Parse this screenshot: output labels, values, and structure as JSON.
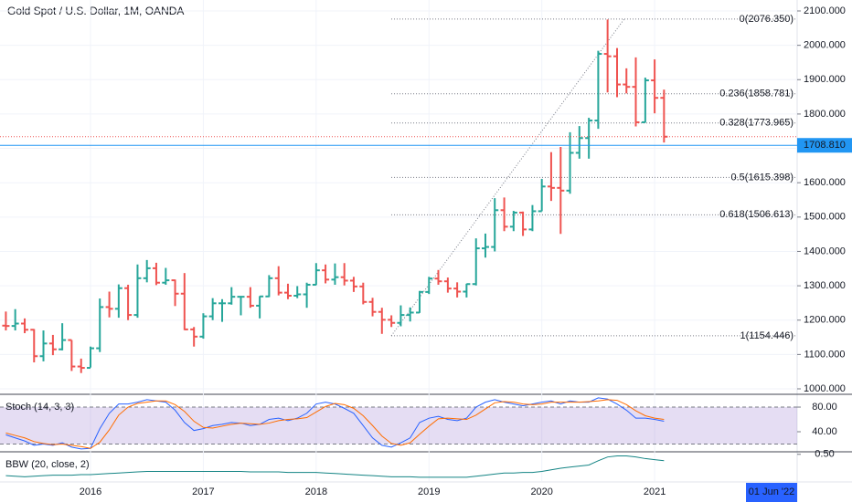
{
  "chart_data": [
    {
      "type": "ohlc",
      "title": "Gold Spot / U.S. Dollar, 1M, OANDA",
      "up_color": "#26a69a",
      "down_color": "#ef5350",
      "x": [
        2015.25,
        2015.333,
        2015.417,
        2015.5,
        2015.583,
        2015.667,
        2015.75,
        2015.833,
        2015.917,
        2016,
        2016.083,
        2016.167,
        2016.25,
        2016.333,
        2016.417,
        2016.5,
        2016.583,
        2016.667,
        2016.75,
        2016.833,
        2016.917,
        2017,
        2017.083,
        2017.167,
        2017.25,
        2017.333,
        2017.417,
        2017.5,
        2017.583,
        2017.667,
        2017.75,
        2017.833,
        2017.917,
        2018,
        2018.083,
        2018.167,
        2018.25,
        2018.333,
        2018.417,
        2018.5,
        2018.583,
        2018.667,
        2018.75,
        2018.833,
        2018.917,
        2019,
        2019.083,
        2019.167,
        2019.25,
        2019.333,
        2019.417,
        2019.5,
        2019.583,
        2019.667,
        2019.75,
        2019.833,
        2019.917,
        2020,
        2020.083,
        2020.167,
        2020.25,
        2020.333,
        2020.417,
        2020.5,
        2020.583,
        2020.667,
        2020.75,
        2020.833,
        2020.917,
        2021,
        2021.083
      ],
      "open": [
        1184,
        1183,
        1190,
        1172,
        1095,
        1132,
        1115,
        1142,
        1065,
        1061,
        1118,
        1238,
        1233,
        1293,
        1215,
        1322,
        1351,
        1309,
        1316,
        1277,
        1173,
        1152,
        1211,
        1249,
        1249,
        1268,
        1268,
        1242,
        1269,
        1322,
        1280,
        1271,
        1275,
        1303,
        1345,
        1318,
        1325,
        1315,
        1298,
        1253,
        1224,
        1201,
        1192,
        1215,
        1222,
        1282,
        1321,
        1313,
        1292,
        1283,
        1305,
        1409,
        1413,
        1520,
        1472,
        1513,
        1464,
        1517,
        1589,
        1585,
        1577,
        1687,
        1730,
        1781,
        1975,
        1968,
        1886,
        1879,
        1776,
        1898,
        1847
      ],
      "high": [
        1225,
        1232,
        1205,
        1174,
        1170,
        1157,
        1191,
        1142,
        1088,
        1123,
        1263,
        1283,
        1304,
        1303,
        1362,
        1375,
        1367,
        1352,
        1318,
        1337,
        1180,
        1220,
        1264,
        1261,
        1296,
        1270,
        1296,
        1270,
        1331,
        1357,
        1306,
        1299,
        1309,
        1366,
        1362,
        1365,
        1366,
        1326,
        1309,
        1265,
        1236,
        1214,
        1243,
        1237,
        1285,
        1326,
        1346,
        1324,
        1310,
        1306,
        1438,
        1452,
        1555,
        1557,
        1518,
        1516,
        1535,
        1611,
        1689,
        1704,
        1747,
        1765,
        1789,
        1984,
        2075,
        1992,
        1933,
        1965,
        1906,
        1959,
        1871
      ],
      "low": [
        1170,
        1170,
        1162,
        1077,
        1080,
        1098,
        1112,
        1052,
        1046,
        1062,
        1107,
        1208,
        1207,
        1200,
        1207,
        1310,
        1302,
        1303,
        1241,
        1171,
        1123,
        1146,
        1200,
        1195,
        1245,
        1214,
        1236,
        1205,
        1267,
        1272,
        1261,
        1264,
        1236,
        1302,
        1307,
        1303,
        1301,
        1282,
        1246,
        1211,
        1160,
        1180,
        1182,
        1196,
        1221,
        1276,
        1303,
        1280,
        1266,
        1266,
        1301,
        1382,
        1400,
        1459,
        1459,
        1445,
        1459,
        1517,
        1547,
        1451,
        1568,
        1670,
        1670,
        1757,
        1863,
        1849,
        1860,
        1764,
        1775,
        1802,
        1717
      ],
      "close": [
        1183,
        1190,
        1172,
        1095,
        1132,
        1115,
        1142,
        1065,
        1061,
        1118,
        1238,
        1233,
        1293,
        1215,
        1322,
        1351,
        1309,
        1316,
        1277,
        1173,
        1152,
        1211,
        1249,
        1249,
        1268,
        1268,
        1242,
        1269,
        1322,
        1280,
        1271,
        1275,
        1303,
        1345,
        1318,
        1325,
        1315,
        1298,
        1253,
        1224,
        1201,
        1192,
        1215,
        1222,
        1282,
        1321,
        1313,
        1292,
        1283,
        1305,
        1409,
        1413,
        1520,
        1472,
        1513,
        1464,
        1517,
        1589,
        1585,
        1577,
        1687,
        1730,
        1781,
        1975,
        1968,
        1886,
        1879,
        1776,
        1898,
        1847,
        1734
      ],
      "xlim": [
        2015.198,
        2022.263
      ],
      "xticks": [
        2016,
        2017,
        2018,
        2019,
        2020,
        2021
      ],
      "ylim": [
        989.4,
        2131.9
      ],
      "yticks": [
        {
          "value": 1000,
          "label": "1000.000"
        },
        {
          "value": 1100,
          "label": "1100.000"
        },
        {
          "value": 1200,
          "label": "1200.000"
        },
        {
          "value": 1300,
          "label": "1300.000"
        },
        {
          "value": 1400,
          "label": "1400.000"
        },
        {
          "value": 1500,
          "label": "1500.000"
        },
        {
          "value": 1600,
          "label": "1600.000"
        },
        {
          "value": 1700,
          "label": "1700.000"
        },
        {
          "value": 1800,
          "label": "1800.000"
        },
        {
          "value": 1900,
          "label": "1900.000"
        },
        {
          "value": 2000,
          "label": "2000.000"
        },
        {
          "value": 2100,
          "label": "2100.000"
        }
      ],
      "current_price": {
        "value": 1708.81,
        "label": "1708.810"
      },
      "fib_levels": [
        {
          "value": 2076.35,
          "label": "0(2076.350)"
        },
        {
          "value": 1858.781,
          "label": "0.236(1858.781)"
        },
        {
          "value": 1773.965,
          "label": "0.328(1773.965)"
        },
        {
          "value": 1615.398,
          "label": "0.5(1615.398)"
        },
        {
          "value": 1506.613,
          "label": "0.618(1506.613)"
        },
        {
          "value": 1154.446,
          "label": "1(1154.446)"
        }
      ],
      "trendline": {
        "x": [
          2018.666,
          2020.73
        ],
        "values": [
          1154.446,
          2076.35
        ]
      },
      "crosshair_date": "01 Jun '22"
    },
    {
      "type": "line",
      "title": "Stoch (14, 3, 3)",
      "x": [
        2015.25,
        2015.333,
        2015.417,
        2015.5,
        2015.583,
        2015.667,
        2015.75,
        2015.833,
        2015.917,
        2016,
        2016.083,
        2016.167,
        2016.25,
        2016.333,
        2016.417,
        2016.5,
        2016.583,
        2016.667,
        2016.75,
        2016.833,
        2016.917,
        2017,
        2017.083,
        2017.167,
        2017.25,
        2017.333,
        2017.417,
        2017.5,
        2017.583,
        2017.667,
        2017.75,
        2017.833,
        2017.917,
        2018,
        2018.083,
        2018.167,
        2018.25,
        2018.333,
        2018.417,
        2018.5,
        2018.583,
        2018.667,
        2018.75,
        2018.833,
        2018.917,
        2019,
        2019.083,
        2019.167,
        2019.25,
        2019.333,
        2019.417,
        2019.5,
        2019.583,
        2019.667,
        2019.75,
        2019.833,
        2019.917,
        2020,
        2020.083,
        2020.167,
        2020.25,
        2020.333,
        2020.417,
        2020.5,
        2020.583,
        2020.667,
        2020.75,
        2020.833,
        2020.917,
        2021,
        2021.083
      ],
      "series": [
        {
          "color": "#2962ff",
          "values": [
            35,
            30,
            25,
            18,
            20,
            18,
            22,
            15,
            12,
            13,
            45,
            70,
            85,
            85,
            88,
            92,
            90,
            88,
            75,
            55,
            42,
            45,
            50,
            52,
            55,
            54,
            50,
            52,
            60,
            62,
            58,
            62,
            70,
            85,
            88,
            85,
            78,
            70,
            50,
            30,
            18,
            15,
            22,
            30,
            55,
            62,
            65,
            60,
            58,
            62,
            80,
            88,
            92,
            88,
            85,
            82,
            85,
            88,
            90,
            85,
            90,
            88,
            88,
            95,
            93,
            85,
            75,
            62,
            62,
            60,
            57
          ]
        },
        {
          "color": "#ff6d00",
          "values": [
            38,
            34,
            30,
            24,
            21,
            19,
            20,
            18,
            16,
            13,
            23,
            43,
            67,
            80,
            86,
            88,
            90,
            90,
            84,
            73,
            57,
            47,
            46,
            49,
            52,
            54,
            53,
            52,
            54,
            58,
            60,
            61,
            63,
            72,
            81,
            86,
            84,
            78,
            66,
            50,
            33,
            21,
            18,
            22,
            36,
            49,
            61,
            62,
            61,
            60,
            67,
            77,
            87,
            89,
            88,
            85,
            84,
            85,
            88,
            88,
            88,
            88,
            89,
            90,
            92,
            91,
            84,
            74,
            66,
            62,
            60
          ]
        }
      ],
      "band": [
        20,
        80
      ],
      "band_color": "#7e57c2",
      "xlim": [
        2015.198,
        2022.263
      ],
      "ylim": [
        8.9,
        99.3
      ],
      "yticks": [
        {
          "value": 80,
          "label": "80.00"
        },
        {
          "value": 40,
          "label": "40.00"
        }
      ]
    },
    {
      "type": "line",
      "title": "BBW (20, close, 2)",
      "x": [
        2015.25,
        2015.333,
        2015.417,
        2015.5,
        2015.583,
        2015.667,
        2015.75,
        2015.833,
        2015.917,
        2016,
        2016.083,
        2016.167,
        2016.25,
        2016.333,
        2016.417,
        2016.5,
        2016.583,
        2016.667,
        2016.75,
        2016.833,
        2016.917,
        2017,
        2017.083,
        2017.167,
        2017.25,
        2017.333,
        2017.417,
        2017.5,
        2017.583,
        2017.667,
        2017.75,
        2017.833,
        2017.917,
        2018,
        2018.083,
        2018.167,
        2018.25,
        2018.333,
        2018.417,
        2018.5,
        2018.583,
        2018.667,
        2018.75,
        2018.833,
        2018.917,
        2019,
        2019.083,
        2019.167,
        2019.25,
        2019.333,
        2019.417,
        2019.5,
        2019.583,
        2019.667,
        2019.75,
        2019.833,
        2019.917,
        2020,
        2020.083,
        2020.167,
        2020.25,
        2020.333,
        2020.417,
        2020.5,
        2020.583,
        2020.667,
        2020.75,
        2020.833,
        2020.917,
        2021,
        2021.083
      ],
      "series": [
        {
          "color": "#138484",
          "values": [
            0.1,
            0.09,
            0.08,
            0.09,
            0.1,
            0.11,
            0.11,
            0.11,
            0.12,
            0.12,
            0.13,
            0.14,
            0.15,
            0.16,
            0.17,
            0.18,
            0.18,
            0.18,
            0.18,
            0.18,
            0.18,
            0.18,
            0.18,
            0.18,
            0.18,
            0.18,
            0.17,
            0.17,
            0.17,
            0.17,
            0.16,
            0.16,
            0.16,
            0.16,
            0.15,
            0.14,
            0.13,
            0.12,
            0.11,
            0.1,
            0.09,
            0.08,
            0.08,
            0.08,
            0.07,
            0.07,
            0.07,
            0.07,
            0.07,
            0.07,
            0.09,
            0.11,
            0.13,
            0.15,
            0.15,
            0.16,
            0.16,
            0.18,
            0.21,
            0.24,
            0.26,
            0.28,
            0.3,
            0.38,
            0.45,
            0.47,
            0.47,
            0.45,
            0.42,
            0.4,
            0.38
          ]
        }
      ],
      "xlim": [
        2015.198,
        2022.263
      ],
      "ylim": [
        0,
        0.53
      ],
      "yticks": [
        {
          "value": 0.5,
          "label": "0.50"
        }
      ]
    }
  ]
}
